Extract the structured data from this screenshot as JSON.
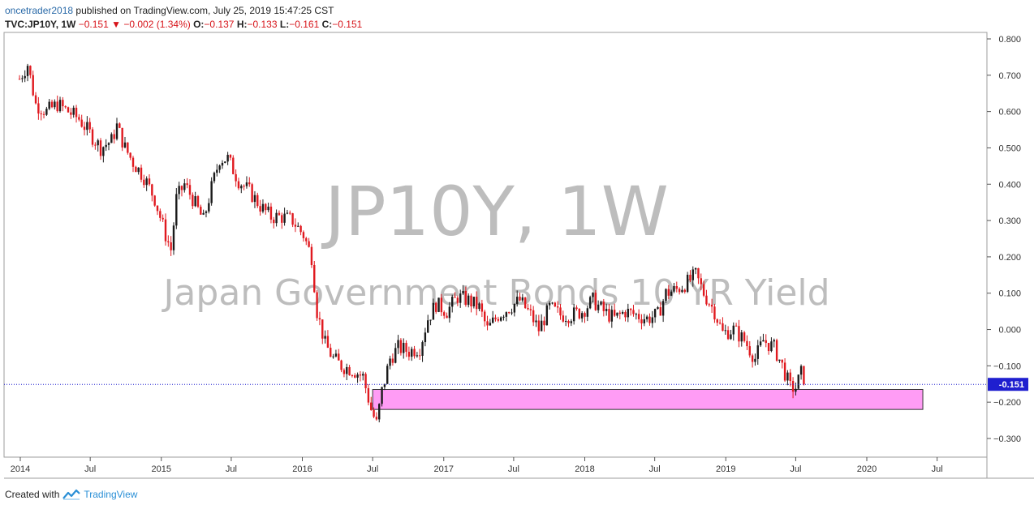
{
  "header": {
    "author": "oncetrader2018",
    "published_text": "published on TradingView.com, July 25, 2019 15:47:25 CST",
    "symbol": "TVC:JP10Y, 1W",
    "last": "−0.151",
    "change": "−0.002 (1.34%)",
    "o_label": "O:",
    "o_value": "−0.137",
    "h_label": "H:",
    "h_value": "−0.133",
    "l_label": "L:",
    "l_value": "−0.161",
    "c_label": "C:",
    "c_value": "−0.151"
  },
  "watermark": {
    "symbol": "JP10Y, 1W",
    "name": "Japan Government Bonds 10 YR Yield"
  },
  "price_badge": "-0.151",
  "footer": {
    "created_with": "Created with",
    "brand": "TradingView"
  },
  "colors": {
    "up": "#1a1a1a",
    "down": "#e0191f",
    "zone_fill": "#ff9cf5",
    "price_line": "#1f1fcf",
    "badge": "#1f1fcf"
  },
  "chart_data": {
    "type": "candlestick",
    "timeframe": "1W",
    "x_ticks": [
      "2014",
      "Jul",
      "2015",
      "Jul",
      "2016",
      "Jul",
      "2017",
      "Jul",
      "2018",
      "Jul",
      "2019",
      "Jul",
      "2020",
      "Jul"
    ],
    "y_ticks": [
      "0.800",
      "0.700",
      "0.600",
      "0.500",
      "0.400",
      "0.300",
      "0.200",
      "0.100",
      "0.000",
      "−0.100",
      "−0.200",
      "−0.300"
    ],
    "ylim": [
      -0.35,
      0.8
    ],
    "last_price": -0.151,
    "support_zone": {
      "start": "2016-07-01",
      "end": "2020-05-25",
      "low": -0.22,
      "high": -0.165
    },
    "series_close_path": [
      {
        "d": "2013-12-30",
        "v": 0.69
      },
      {
        "d": "2014-01-20",
        "v": 0.73
      },
      {
        "d": "2014-02-10",
        "v": 0.62
      },
      {
        "d": "2014-03-10",
        "v": 0.6
      },
      {
        "d": "2014-04-07",
        "v": 0.62
      },
      {
        "d": "2014-05-05",
        "v": 0.6
      },
      {
        "d": "2014-06-02",
        "v": 0.58
      },
      {
        "d": "2014-06-30",
        "v": 0.54
      },
      {
        "d": "2014-07-28",
        "v": 0.5
      },
      {
        "d": "2014-08-25",
        "v": 0.52
      },
      {
        "d": "2014-09-08",
        "v": 0.56
      },
      {
        "d": "2014-09-29",
        "v": 0.5
      },
      {
        "d": "2014-10-20",
        "v": 0.46
      },
      {
        "d": "2014-11-17",
        "v": 0.42
      },
      {
        "d": "2014-12-15",
        "v": 0.36
      },
      {
        "d": "2015-01-12",
        "v": 0.26
      },
      {
        "d": "2015-01-26",
        "v": 0.22
      },
      {
        "d": "2015-02-09",
        "v": 0.36
      },
      {
        "d": "2015-03-02",
        "v": 0.4
      },
      {
        "d": "2015-03-23",
        "v": 0.36
      },
      {
        "d": "2015-04-20",
        "v": 0.3
      },
      {
        "d": "2015-05-11",
        "v": 0.39
      },
      {
        "d": "2015-06-01",
        "v": 0.47
      },
      {
        "d": "2015-06-22",
        "v": 0.47
      },
      {
        "d": "2015-07-20",
        "v": 0.41
      },
      {
        "d": "2015-08-17",
        "v": 0.38
      },
      {
        "d": "2015-09-14",
        "v": 0.34
      },
      {
        "d": "2015-10-12",
        "v": 0.31
      },
      {
        "d": "2015-11-09",
        "v": 0.31
      },
      {
        "d": "2015-12-07",
        "v": 0.3
      },
      {
        "d": "2016-01-04",
        "v": 0.26
      },
      {
        "d": "2016-01-25",
        "v": 0.2
      },
      {
        "d": "2016-02-08",
        "v": 0.05
      },
      {
        "d": "2016-02-29",
        "v": -0.04
      },
      {
        "d": "2016-03-21",
        "v": -0.08
      },
      {
        "d": "2016-04-11",
        "v": -0.1
      },
      {
        "d": "2016-05-09",
        "v": -0.11
      },
      {
        "d": "2016-06-06",
        "v": -0.13
      },
      {
        "d": "2016-06-27",
        "v": -0.22
      },
      {
        "d": "2016-07-11",
        "v": -0.26
      },
      {
        "d": "2016-07-25",
        "v": -0.17
      },
      {
        "d": "2016-08-15",
        "v": -0.08
      },
      {
        "d": "2016-09-05",
        "v": -0.05
      },
      {
        "d": "2016-10-03",
        "v": -0.06
      },
      {
        "d": "2016-10-31",
        "v": -0.05
      },
      {
        "d": "2016-11-21",
        "v": 0.03
      },
      {
        "d": "2016-12-12",
        "v": 0.07
      },
      {
        "d": "2017-01-09",
        "v": 0.05
      },
      {
        "d": "2017-02-06",
        "v": 0.09
      },
      {
        "d": "2017-03-06",
        "v": 0.08
      },
      {
        "d": "2017-04-03",
        "v": 0.06
      },
      {
        "d": "2017-04-24",
        "v": 0.0
      },
      {
        "d": "2017-05-22",
        "v": 0.04
      },
      {
        "d": "2017-06-19",
        "v": 0.06
      },
      {
        "d": "2017-07-17",
        "v": 0.08
      },
      {
        "d": "2017-08-14",
        "v": 0.04
      },
      {
        "d": "2017-09-04",
        "v": 0.0
      },
      {
        "d": "2017-10-02",
        "v": 0.06
      },
      {
        "d": "2017-10-30",
        "v": 0.04
      },
      {
        "d": "2017-11-27",
        "v": 0.04
      },
      {
        "d": "2017-12-25",
        "v": 0.05
      },
      {
        "d": "2018-01-22",
        "v": 0.08
      },
      {
        "d": "2018-02-19",
        "v": 0.05
      },
      {
        "d": "2018-03-19",
        "v": 0.03
      },
      {
        "d": "2018-04-16",
        "v": 0.05
      },
      {
        "d": "2018-05-14",
        "v": 0.04
      },
      {
        "d": "2018-06-11",
        "v": 0.03
      },
      {
        "d": "2018-07-09",
        "v": 0.04
      },
      {
        "d": "2018-07-30",
        "v": 0.1
      },
      {
        "d": "2018-08-27",
        "v": 0.11
      },
      {
        "d": "2018-09-24",
        "v": 0.13
      },
      {
        "d": "2018-10-15",
        "v": 0.15
      },
      {
        "d": "2018-11-05",
        "v": 0.1
      },
      {
        "d": "2018-12-03",
        "v": 0.05
      },
      {
        "d": "2018-12-24",
        "v": -0.01
      },
      {
        "d": "2019-01-21",
        "v": 0.0
      },
      {
        "d": "2019-02-18",
        "v": -0.03
      },
      {
        "d": "2019-03-18",
        "v": -0.08
      },
      {
        "d": "2019-04-08",
        "v": -0.03
      },
      {
        "d": "2019-05-06",
        "v": -0.05
      },
      {
        "d": "2019-05-27",
        "v": -0.1
      },
      {
        "d": "2019-06-17",
        "v": -0.16
      },
      {
        "d": "2019-07-01",
        "v": -0.16
      },
      {
        "d": "2019-07-15",
        "v": -0.12
      },
      {
        "d": "2019-07-22",
        "v": -0.151
      }
    ]
  }
}
